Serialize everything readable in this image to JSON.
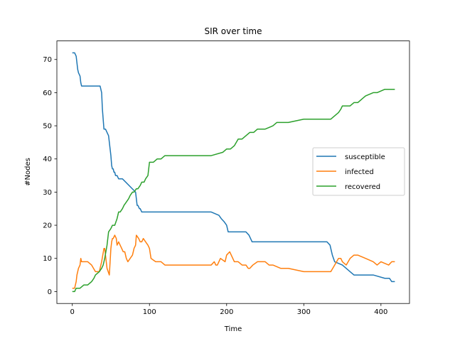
{
  "chart_data": {
    "type": "line",
    "title": "SIR over time",
    "xlabel": "Time",
    "ylabel": "#Nodes",
    "xlim": [
      -20,
      437
    ],
    "ylim": [
      -3.6,
      75.6
    ],
    "xticks": [
      0,
      100,
      200,
      300,
      400
    ],
    "yticks": [
      0,
      10,
      20,
      30,
      40,
      50,
      60,
      70
    ],
    "grid": false,
    "legend_position": "center-right",
    "series": [
      {
        "name": "susceptible",
        "color": "#1f77b4",
        "x": [
          0,
          3,
          5,
          6,
          7,
          8,
          10,
          11,
          12,
          20,
          30,
          36,
          37,
          38,
          39,
          40,
          41,
          42,
          43,
          47,
          49,
          50,
          51,
          52,
          53,
          54,
          55,
          56,
          58,
          60,
          62,
          65,
          82,
          83,
          84,
          85,
          87,
          88,
          90,
          95,
          100,
          180,
          190,
          193,
          197,
          200,
          202,
          225,
          229,
          231,
          233,
          240,
          330,
          334,
          336,
          337,
          340,
          350,
          360,
          365,
          380,
          390,
          405,
          411,
          414,
          418
        ],
        "y": [
          72,
          72,
          71,
          69,
          67,
          66,
          65,
          63,
          62,
          62,
          62,
          62,
          61,
          60,
          55,
          52,
          49,
          49,
          49,
          47,
          43,
          41,
          38,
          37,
          37,
          36,
          36,
          35,
          35,
          34,
          34,
          34,
          30,
          28,
          26,
          26,
          25,
          25,
          24,
          24,
          24,
          24,
          23,
          22,
          21,
          20,
          18,
          18,
          17,
          16,
          15,
          15,
          15,
          14,
          12,
          11,
          9,
          8,
          6,
          5,
          5,
          5,
          4,
          4,
          3,
          3
        ]
      },
      {
        "name": "infected",
        "color": "#ff7f0e",
        "x": [
          0,
          3,
          5,
          6,
          8,
          10,
          11,
          12,
          15,
          20,
          25,
          30,
          35,
          38,
          41,
          42,
          43,
          44,
          45,
          48,
          50,
          51,
          52,
          53,
          55,
          57,
          58,
          60,
          62,
          64,
          66,
          68,
          70,
          72,
          75,
          78,
          80,
          82,
          83,
          86,
          88,
          90,
          92,
          95,
          98,
          100,
          102,
          108,
          115,
          120,
          180,
          184,
          186,
          188,
          192,
          198,
          200,
          204,
          210,
          215,
          220,
          225,
          228,
          230,
          234,
          240,
          250,
          255,
          260,
          270,
          280,
          300,
          320,
          335,
          340,
          345,
          348,
          350,
          355,
          360,
          365,
          370,
          380,
          390,
          395,
          400,
          410,
          414,
          418
        ],
        "y": [
          1,
          1,
          3,
          5,
          7,
          8,
          10,
          9,
          9,
          9,
          8,
          6,
          6,
          9,
          13,
          13,
          11,
          9,
          7,
          5,
          13,
          15,
          16,
          16,
          17,
          16,
          14,
          15,
          14,
          13,
          12,
          12,
          10,
          9,
          10,
          11,
          13,
          14,
          17,
          16,
          15,
          15,
          16,
          15,
          14,
          13,
          10,
          9,
          9,
          8,
          8,
          9,
          8,
          8,
          10,
          9,
          11,
          12,
          9,
          9,
          8,
          8,
          7,
          7,
          8,
          9,
          9,
          8,
          8,
          7,
          7,
          6,
          6,
          6,
          8,
          10,
          10,
          9,
          8,
          10,
          11,
          11,
          10,
          9,
          8,
          9,
          8,
          9,
          9
        ]
      },
      {
        "name": "recovered",
        "color": "#2ca02c",
        "x": [
          0,
          3,
          5,
          10,
          15,
          20,
          25,
          28,
          30,
          35,
          38,
          40,
          42,
          45,
          47,
          50,
          52,
          55,
          58,
          60,
          62,
          65,
          67,
          70,
          73,
          75,
          78,
          80,
          83,
          85,
          88,
          90,
          93,
          95,
          98,
          100,
          105,
          110,
          115,
          120,
          130,
          150,
          180,
          195,
          200,
          205,
          210,
          215,
          220,
          225,
          230,
          235,
          240,
          250,
          260,
          265,
          270,
          280,
          300,
          320,
          335,
          340,
          345,
          348,
          350,
          355,
          360,
          365,
          370,
          375,
          380,
          390,
          395,
          405,
          418
        ],
        "y": [
          0,
          0,
          1,
          1,
          2,
          2,
          3,
          4,
          5,
          6,
          7,
          8,
          10,
          14,
          18,
          19,
          20,
          20,
          22,
          24,
          24,
          25,
          26,
          27,
          28,
          29,
          30,
          30,
          31,
          31,
          32,
          33,
          33,
          34,
          35,
          39,
          39,
          40,
          40,
          41,
          41,
          41,
          41,
          42,
          43,
          43,
          44,
          46,
          46,
          47,
          48,
          48,
          49,
          49,
          50,
          51,
          51,
          51,
          52,
          52,
          52,
          53,
          54,
          55,
          56,
          56,
          56,
          57,
          57,
          58,
          59,
          60,
          60,
          61,
          61
        ]
      }
    ]
  }
}
